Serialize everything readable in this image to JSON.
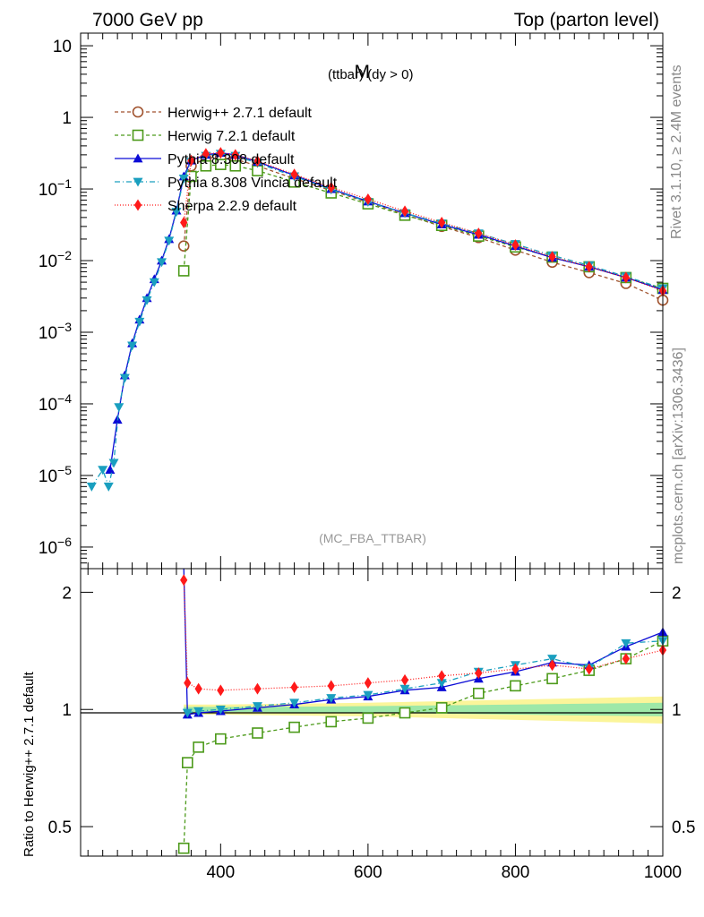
{
  "header": {
    "left_title": "7000 GeV pp",
    "right_title": "Top (parton level)"
  },
  "side_labels": {
    "rivet": "Rivet 3.1.10, ≥ 2.4M events",
    "source": "mcplots.cern.ch [arXiv:1306.3436]"
  },
  "chart_data": [
    {
      "type": "line",
      "panel": "main",
      "title": "M (ttbar) (dy > 0)",
      "title_main": "M",
      "title_sub": "(ttbar) (dy > 0)",
      "analysis_tag": "(MC_FBA_TTBAR)",
      "xlabel": "",
      "ylabel": "",
      "xlim": [
        210,
        1000
      ],
      "ylim": [
        5e-07,
        15
      ],
      "log_y": true,
      "y_ticks": [
        1e-06,
        1e-05,
        0.0001,
        0.001,
        0.01,
        0.1,
        1,
        10
      ],
      "y_tick_labels": [
        {
          "base": "10",
          "exp": "−6"
        },
        {
          "base": "10",
          "exp": "−5"
        },
        {
          "base": "10",
          "exp": "−4"
        },
        {
          "base": "10",
          "exp": "−3"
        },
        {
          "base": "10",
          "exp": "−2"
        },
        {
          "base": "10",
          "exp": "−1"
        },
        {
          "base": "1",
          "exp": ""
        },
        {
          "base": "10",
          "exp": ""
        }
      ],
      "legend_position": "top-left",
      "series": [
        {
          "name": "Herwig++ 2.7.1 default",
          "color": "#a0522d",
          "marker": "open-circle",
          "dash": "4,3",
          "points": [
            [
              350,
              0.016
            ],
            [
              360,
              0.21
            ],
            [
              380,
              0.27
            ],
            [
              400,
              0.28
            ],
            [
              420,
              0.26
            ],
            [
              450,
              0.21
            ],
            [
              500,
              0.14
            ],
            [
              550,
              0.095
            ],
            [
              600,
              0.065
            ],
            [
              650,
              0.044
            ],
            [
              700,
              0.03
            ],
            [
              750,
              0.021
            ],
            [
              800,
              0.014
            ],
            [
              850,
              0.0095
            ],
            [
              900,
              0.0068
            ],
            [
              950,
              0.0048
            ],
            [
              1000,
              0.0028
            ]
          ]
        },
        {
          "name": "Herwig 7.2.1 default",
          "color": "#4c9a1a",
          "marker": "open-square",
          "dash": "4,3",
          "points": [
            [
              350,
              0.0072
            ],
            [
              360,
              0.15
            ],
            [
              380,
              0.21
            ],
            [
              400,
              0.22
            ],
            [
              420,
              0.21
            ],
            [
              450,
              0.18
            ],
            [
              500,
              0.125
            ],
            [
              550,
              0.088
            ],
            [
              600,
              0.062
            ],
            [
              650,
              0.043
            ],
            [
              700,
              0.031
            ],
            [
              750,
              0.022
            ],
            [
              800,
              0.0155
            ],
            [
              850,
              0.0112
            ],
            [
              900,
              0.0082
            ],
            [
              950,
              0.0058
            ],
            [
              1000,
              0.0041
            ]
          ]
        },
        {
          "name": "Pythia 8.308 default",
          "color": "#0b0bd6",
          "marker": "triangle-up",
          "dash": "",
          "points": [
            [
              250,
              1.2e-05
            ],
            [
              260,
              6e-05
            ],
            [
              270,
              0.00025
            ],
            [
              280,
              0.0007
            ],
            [
              290,
              0.0015
            ],
            [
              300,
              0.003
            ],
            [
              310,
              0.0055
            ],
            [
              320,
              0.01
            ],
            [
              330,
              0.02
            ],
            [
              340,
              0.05
            ],
            [
              350,
              0.15
            ],
            [
              360,
              0.25
            ],
            [
              380,
              0.3
            ],
            [
              400,
              0.32
            ],
            [
              420,
              0.3
            ],
            [
              450,
              0.24
            ],
            [
              500,
              0.155
            ],
            [
              550,
              0.1
            ],
            [
              600,
              0.067
            ],
            [
              650,
              0.046
            ],
            [
              700,
              0.032
            ],
            [
              750,
              0.023
            ],
            [
              800,
              0.016
            ],
            [
              850,
              0.011
            ],
            [
              900,
              0.0082
            ],
            [
              950,
              0.0058
            ],
            [
              1000,
              0.0039
            ]
          ]
        },
        {
          "name": "Pythia 8.308 Vincia default",
          "color": "#1a9fbf",
          "marker": "triangle-down",
          "dash": "6,3,1,3",
          "points": [
            [
              225,
              7e-06
            ],
            [
              240,
              1.2e-05
            ],
            [
              248,
              7e-06
            ],
            [
              255,
              1.5e-05
            ],
            [
              262,
              9e-05
            ],
            [
              270,
              0.00023
            ],
            [
              280,
              0.00065
            ],
            [
              290,
              0.0014
            ],
            [
              300,
              0.0028
            ],
            [
              310,
              0.005
            ],
            [
              320,
              0.0095
            ],
            [
              330,
              0.019
            ],
            [
              340,
              0.048
            ],
            [
              350,
              0.14
            ],
            [
              360,
              0.24
            ],
            [
              380,
              0.29
            ],
            [
              400,
              0.31
            ],
            [
              420,
              0.29
            ],
            [
              450,
              0.23
            ],
            [
              500,
              0.15
            ],
            [
              550,
              0.098
            ],
            [
              600,
              0.066
            ],
            [
              650,
              0.046
            ],
            [
              700,
              0.033
            ],
            [
              750,
              0.024
            ],
            [
              800,
              0.017
            ],
            [
              850,
              0.0118
            ],
            [
              900,
              0.0086
            ],
            [
              950,
              0.006
            ],
            [
              1000,
              0.0041
            ]
          ]
        },
        {
          "name": "Sherpa 2.2.9 default",
          "color": "#ff1a1a",
          "marker": "diamond",
          "dash": "1,2",
          "points": [
            [
              350,
              0.034
            ],
            [
              360,
              0.25
            ],
            [
              380,
              0.31
            ],
            [
              400,
              0.32
            ],
            [
              420,
              0.3
            ],
            [
              450,
              0.245
            ],
            [
              500,
              0.16
            ],
            [
              550,
              0.105
            ],
            [
              600,
              0.072
            ],
            [
              650,
              0.049
            ],
            [
              700,
              0.034
            ],
            [
              750,
              0.024
            ],
            [
              800,
              0.0165
            ],
            [
              850,
              0.0113
            ],
            [
              900,
              0.0082
            ],
            [
              950,
              0.0058
            ],
            [
              1000,
              0.0038
            ]
          ]
        }
      ]
    },
    {
      "type": "line",
      "panel": "ratio",
      "xlabel": "",
      "ylabel": "Ratio to Herwig++ 2.7.1 default",
      "xlim": [
        210,
        1000
      ],
      "ylim": [
        0.42,
        2.3
      ],
      "log_y": true,
      "x_ticks": [
        400,
        600,
        800,
        1000
      ],
      "x_tick_labels": [
        "400",
        "600",
        "800",
        "1000"
      ],
      "y_ticks": [
        0.5,
        1,
        2
      ],
      "y_tick_labels": [
        "0.5",
        "1",
        "2"
      ],
      "reference_band": {
        "x": [
          350,
          400,
          500,
          600,
          700,
          800,
          900,
          1000
        ],
        "inner": [
          0.015,
          0.015,
          0.017,
          0.02,
          0.025,
          0.03,
          0.035,
          0.04
        ],
        "outer": [
          0.03,
          0.03,
          0.035,
          0.04,
          0.05,
          0.06,
          0.07,
          0.08
        ]
      },
      "series": [
        {
          "name": "Herwig 7.2.1 default",
          "points": [
            [
              350,
              0.44
            ],
            [
              355,
              0.73
            ],
            [
              370,
              0.8
            ],
            [
              400,
              0.84
            ],
            [
              450,
              0.87
            ],
            [
              500,
              0.9
            ],
            [
              550,
              0.93
            ],
            [
              600,
              0.95
            ],
            [
              650,
              0.98
            ],
            [
              700,
              1.01
            ],
            [
              750,
              1.1
            ],
            [
              800,
              1.15
            ],
            [
              850,
              1.2
            ],
            [
              900,
              1.26
            ],
            [
              950,
              1.35
            ],
            [
              1000,
              1.5
            ]
          ]
        },
        {
          "name": "Pythia 8.308 default",
          "points": [
            [
              350,
              2.4
            ],
            [
              355,
              0.97
            ],
            [
              370,
              0.98
            ],
            [
              400,
              0.99
            ],
            [
              450,
              1.01
            ],
            [
              500,
              1.03
            ],
            [
              550,
              1.06
            ],
            [
              600,
              1.08
            ],
            [
              650,
              1.12
            ],
            [
              700,
              1.14
            ],
            [
              750,
              1.2
            ],
            [
              800,
              1.25
            ],
            [
              850,
              1.32
            ],
            [
              900,
              1.3
            ],
            [
              950,
              1.45
            ],
            [
              1000,
              1.58
            ]
          ]
        },
        {
          "name": "Pythia 8.308 Vincia default",
          "points": [
            [
              355,
              0.98
            ],
            [
              370,
              0.99
            ],
            [
              400,
              1.0
            ],
            [
              450,
              1.02
            ],
            [
              500,
              1.04
            ],
            [
              550,
              1.07
            ],
            [
              600,
              1.09
            ],
            [
              650,
              1.13
            ],
            [
              700,
              1.17
            ],
            [
              750,
              1.25
            ],
            [
              800,
              1.3
            ],
            [
              850,
              1.35
            ],
            [
              900,
              1.28
            ],
            [
              950,
              1.48
            ],
            [
              1000,
              1.5
            ]
          ]
        },
        {
          "name": "Sherpa 2.2.9 default",
          "points": [
            [
              350,
              2.15
            ],
            [
              355,
              1.17
            ],
            [
              370,
              1.13
            ],
            [
              400,
              1.12
            ],
            [
              450,
              1.13
            ],
            [
              500,
              1.14
            ],
            [
              550,
              1.15
            ],
            [
              600,
              1.17
            ],
            [
              650,
              1.19
            ],
            [
              700,
              1.22
            ],
            [
              750,
              1.24
            ],
            [
              800,
              1.27
            ],
            [
              850,
              1.3
            ],
            [
              900,
              1.27
            ],
            [
              950,
              1.35
            ],
            [
              1000,
              1.42
            ]
          ]
        }
      ]
    }
  ]
}
